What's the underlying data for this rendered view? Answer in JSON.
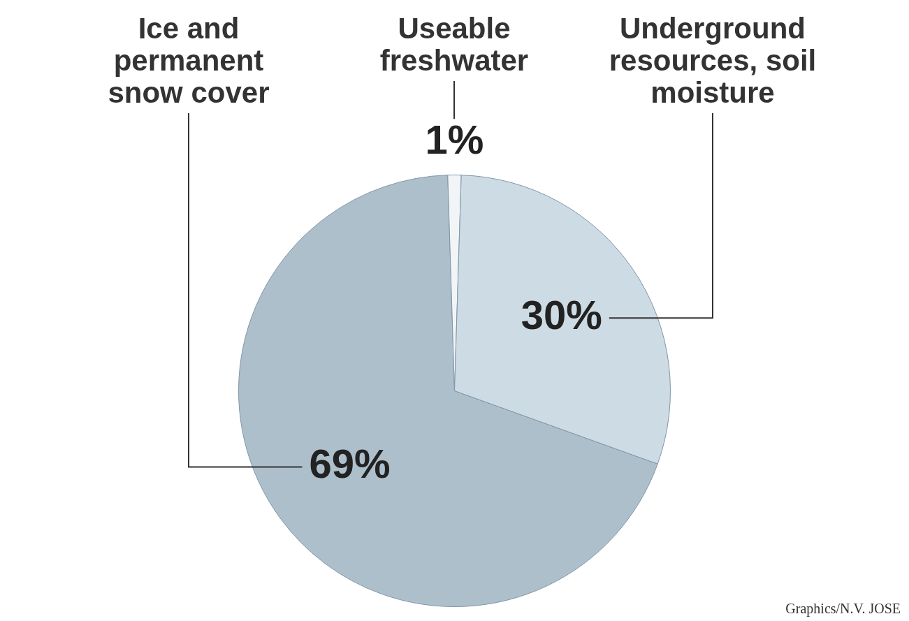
{
  "chart_data": {
    "type": "pie",
    "categories": [
      "Ice and permanent snow cover",
      "Useable freshwater",
      "Underground resources, soil moisture"
    ],
    "values": [
      69,
      1,
      30
    ],
    "value_labels": [
      "69%",
      "1%",
      "30%"
    ],
    "colors": [
      "#aebfcc",
      "#f2f5f7",
      "#cddbe4"
    ],
    "data_labels": true,
    "annotations": [
      "Graphics/N.V. JOSE"
    ]
  }
}
